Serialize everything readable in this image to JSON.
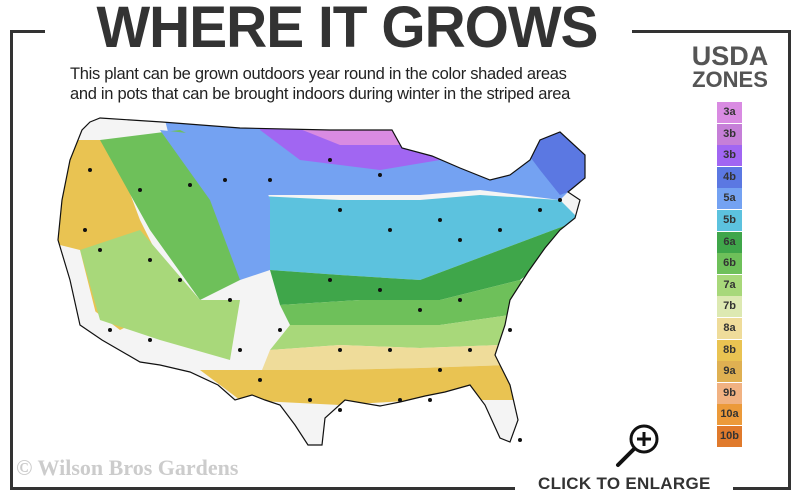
{
  "title": "WHERE IT GROWS",
  "subtitle_line1": "This plant can be grown outdoors year round in the color shaded areas",
  "subtitle_line2": "and in pots that can be brought indoors during winter in the striped area",
  "legend": {
    "title_line1": "USDA",
    "title_line2": "ZONES",
    "zones": [
      {
        "label": "3a",
        "color": "#d98be2"
      },
      {
        "label": "3b",
        "color": "#c67fd8"
      },
      {
        "label": "3b",
        "color": "#a166f2"
      },
      {
        "label": "4b",
        "color": "#5b78e2"
      },
      {
        "label": "5a",
        "color": "#74a2f2"
      },
      {
        "label": "5b",
        "color": "#5cc2de"
      },
      {
        "label": "6a",
        "color": "#3fa64a"
      },
      {
        "label": "6b",
        "color": "#6ec05a"
      },
      {
        "label": "7a",
        "color": "#a8d87a"
      },
      {
        "label": "7b",
        "color": "#dde9b2"
      },
      {
        "label": "8a",
        "color": "#efdc9a"
      },
      {
        "label": "8b",
        "color": "#e9c352"
      },
      {
        "label": "9a",
        "color": "#dfb052"
      },
      {
        "label": "9b",
        "color": "#f1b282"
      },
      {
        "label": "10a",
        "color": "#ec9a3a"
      },
      {
        "label": "10b",
        "color": "#e07a2c"
      }
    ]
  },
  "watermark": "© Wilson Bros Gardens",
  "enlarge_label": "CLICK TO ENLARGE",
  "icons": {
    "enlarge": "magnifier-plus-icon"
  }
}
